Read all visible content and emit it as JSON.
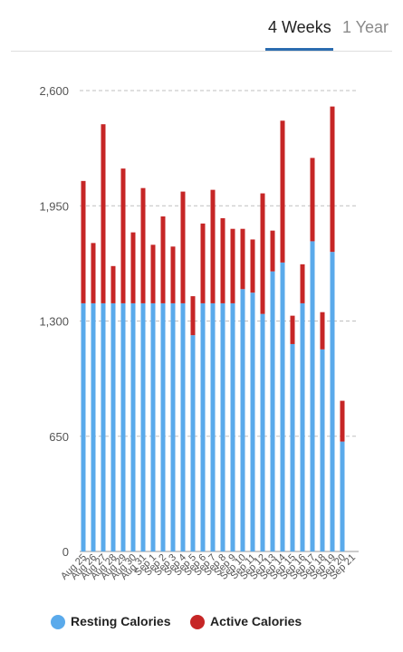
{
  "tabs": [
    {
      "label": "4 Weeks",
      "selected": true
    },
    {
      "label": "1 Year",
      "selected": false
    }
  ],
  "colors": {
    "resting": "#5aaaeb",
    "active": "#c62626",
    "tab_accent": "#2b6cb0",
    "grid": "#bfbfbf",
    "axis_text": "#555555"
  },
  "chart_data": {
    "type": "bar",
    "stacked": true,
    "categories": [
      "Aug 25",
      "Aug 26",
      "Aug 27",
      "Aug 28",
      "Aug 29",
      "Aug 30",
      "Aug 31",
      "Sep 1",
      "Sep 2",
      "Sep 3",
      "Sep 4",
      "Sep 5",
      "Sep 6",
      "Sep 7",
      "Sep 8",
      "Sep 9",
      "Sep 10",
      "Sep 11",
      "Sep 12",
      "Sep 13",
      "Sep 14",
      "Sep 15",
      "Sep 16",
      "Sep 17",
      "Sep 18",
      "Sep 19",
      "Sep 20",
      "Sep 21"
    ],
    "series": [
      {
        "name": "Resting Calories",
        "color": "#5aaaeb",
        "values": [
          1400,
          1400,
          1400,
          1400,
          1400,
          1400,
          1400,
          1400,
          1400,
          1400,
          1400,
          1220,
          1400,
          1400,
          1400,
          1400,
          1480,
          1460,
          1340,
          1580,
          1630,
          1170,
          1400,
          1750,
          1140,
          1690,
          620,
          0
        ]
      },
      {
        "name": "Active Calories",
        "color": "#c62626",
        "values": [
          690,
          340,
          1010,
          210,
          760,
          400,
          650,
          330,
          490,
          320,
          630,
          220,
          450,
          640,
          480,
          420,
          340,
          300,
          680,
          230,
          800,
          160,
          220,
          470,
          210,
          820,
          230,
          0
        ]
      }
    ],
    "y_ticks": [
      "0",
      "650",
      "1,300",
      "1,950",
      "2,600"
    ],
    "ylim": [
      0,
      2600
    ],
    "grid": true,
    "legend_position": "bottom-left"
  }
}
